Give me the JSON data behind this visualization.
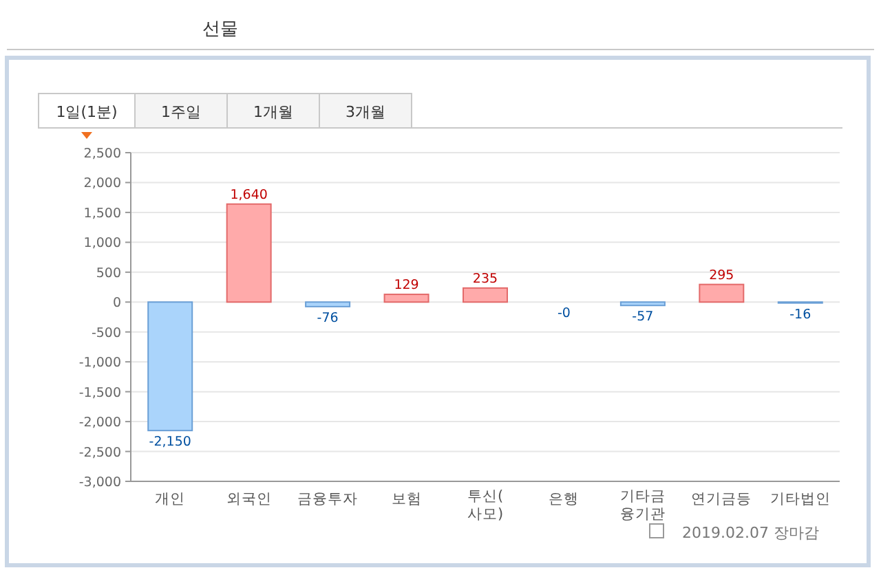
{
  "chart_data": {
    "type": "bar",
    "categories": [
      "개인",
      "외국인",
      "금융투자",
      "보험",
      "투신(사모)",
      "은행",
      "기타금융기관",
      "연기금등",
      "기타법인"
    ],
    "values": [
      -2150,
      1640,
      -76,
      129,
      235,
      0,
      -57,
      295,
      -16
    ],
    "value_labels": [
      "-2,150",
      "1,640",
      "-76",
      "129",
      "235",
      "-0",
      "-57",
      "295",
      "-16"
    ],
    "colors": [
      "#aad4fb",
      "#ffaaaa",
      "#aad4fb",
      "#ffaaaa",
      "#ffaaaa",
      "#aad4fb",
      "#aad4fb",
      "#ffaaaa",
      "#aad4fb"
    ],
    "ylim": [
      -3000,
      2500
    ],
    "yticks": [
      {
        "value": -3000,
        "label": "-3,000"
      },
      {
        "value": -2500,
        "label": "-2,500"
      },
      {
        "value": -2000,
        "label": "-2,000"
      },
      {
        "value": -1500,
        "label": "-1,500"
      },
      {
        "value": -1000,
        "label": "-1,000"
      },
      {
        "value": -500,
        "label": "-500"
      },
      0,
      {
        "value": 500,
        "label": "500"
      },
      {
        "value": 1000,
        "label": "1,000"
      },
      {
        "value": 1500,
        "label": "1,500"
      },
      {
        "value": 2000,
        "label": "2,000"
      },
      {
        "value": 2500,
        "label": "2,500"
      }
    ],
    "grid": "y",
    "annotations": [
      "선물",
      "1일(1분)",
      "1주일",
      "1개월",
      "3개월",
      "2019.02.07 장마감"
    ]
  }
}
